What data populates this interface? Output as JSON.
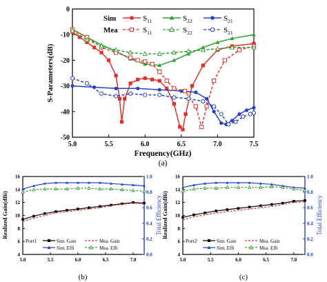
{
  "chart_data": [
    {
      "type": "line",
      "panel_label": "(a)",
      "xlabel": "Frequency(GHz)",
      "ylabel": "S-Parameters(dB)",
      "xlim": [
        5.0,
        7.5
      ],
      "ylim": [
        -50,
        0
      ],
      "xticks": [
        "5.0",
        "5.5",
        "6.0",
        "6.5",
        "7.0",
        "7.5"
      ],
      "yticks": [
        "0",
        "-10",
        "-20",
        "-30",
        "-40",
        "-50"
      ],
      "legend_position": "top",
      "legend": {
        "group_sim": "Sim",
        "group_mea": "Mea",
        "sim_entries": [
          "S11",
          "S22",
          "S21"
        ],
        "mea_entries": [
          "S11",
          "S22",
          "S21"
        ]
      },
      "series": [
        {
          "name": "Sim S11",
          "color": "#e0302a",
          "style": "solid",
          "marker": "square-filled",
          "x": [
            5.0,
            5.1,
            5.2,
            5.3,
            5.4,
            5.5,
            5.6,
            5.65,
            5.68,
            5.72,
            5.8,
            5.9,
            6.0,
            6.1,
            6.2,
            6.3,
            6.4,
            6.48,
            6.52,
            6.56,
            6.65,
            6.8,
            7.0,
            7.2,
            7.5
          ],
          "y": [
            -9,
            -11,
            -13,
            -15,
            -17,
            -20,
            -26,
            -35,
            -44,
            -35,
            -29,
            -27.5,
            -27,
            -27.5,
            -28,
            -31,
            -37,
            -46,
            -47,
            -41,
            -30,
            -22,
            -16,
            -14.5,
            -13.5
          ]
        },
        {
          "name": "Sim S22",
          "color": "#2ea02e",
          "style": "solid",
          "marker": "triangle-filled",
          "x": [
            5.0,
            5.2,
            5.4,
            5.6,
            5.8,
            6.0,
            6.2,
            6.4,
            6.6,
            6.8,
            7.0,
            7.2,
            7.5
          ],
          "y": [
            -8,
            -11,
            -14,
            -16.5,
            -19.5,
            -21.5,
            -22,
            -20,
            -17.5,
            -15,
            -13,
            -11.5,
            -10
          ]
        },
        {
          "name": "Sim S21",
          "color": "#2240c8",
          "style": "solid",
          "marker": "circle-filled",
          "x": [
            5.0,
            5.3,
            5.6,
            5.9,
            6.2,
            6.5,
            6.7,
            6.85,
            6.95,
            7.05,
            7.12,
            7.2,
            7.3,
            7.4,
            7.5
          ],
          "y": [
            -30,
            -30.5,
            -31,
            -31,
            -31.5,
            -32,
            -32.5,
            -35,
            -40,
            -44.5,
            -45,
            -43.5,
            -41,
            -39.5,
            -38.5
          ]
        },
        {
          "name": "Mea S11",
          "color": "#e0302a",
          "style": "dashed",
          "marker": "square-open",
          "x": [
            5.0,
            5.2,
            5.4,
            5.6,
            5.8,
            5.9,
            6.0,
            6.1,
            6.2,
            6.3,
            6.4,
            6.55,
            6.7,
            6.78,
            6.85,
            6.95,
            7.1,
            7.3,
            7.5
          ],
          "y": [
            -8,
            -11,
            -15,
            -17,
            -19,
            -20,
            -20.5,
            -21.5,
            -24.5,
            -28,
            -31,
            -32,
            -38,
            -46,
            -38,
            -28,
            -20,
            -16,
            -14.5
          ]
        },
        {
          "name": "Mea S22",
          "color": "#2ea02e",
          "style": "dashed",
          "marker": "triangle-open",
          "x": [
            5.0,
            5.2,
            5.4,
            5.6,
            5.8,
            6.0,
            6.2,
            6.4,
            6.6,
            6.8,
            7.0,
            7.2,
            7.5
          ],
          "y": [
            -8.5,
            -12,
            -14.5,
            -16,
            -17,
            -17.5,
            -17.5,
            -17,
            -16.5,
            -16,
            -15.5,
            -15,
            -15
          ]
        },
        {
          "name": "Mea S21",
          "color": "#2240c8",
          "style": "dashed",
          "marker": "circle-open",
          "x": [
            5.0,
            5.2,
            5.4,
            5.6,
            5.8,
            6.0,
            6.2,
            6.4,
            6.6,
            6.8,
            6.95,
            7.05,
            7.15,
            7.25,
            7.35,
            7.45,
            7.5
          ],
          "y": [
            -27,
            -29,
            -33,
            -34,
            -33,
            -33.5,
            -33.5,
            -34.5,
            -35,
            -36,
            -38,
            -41,
            -45,
            -44,
            -42,
            -41,
            -40.5
          ]
        }
      ]
    },
    {
      "type": "line",
      "panel_label": "(b)",
      "port_label": "Port1",
      "xlabel": "",
      "ylabel": "Realized Gain(dBi)",
      "ylabel_right": "Total Efficiency",
      "xlim": [
        5.0,
        7.2
      ],
      "ylim": [
        4,
        16
      ],
      "ylim_right": [
        0,
        1.0
      ],
      "xticks": [
        "5.0",
        "5.5",
        "6.0",
        "6.5",
        "7.0"
      ],
      "yticks": [
        "4",
        "6",
        "8",
        "10",
        "12",
        "14",
        "16"
      ],
      "yticks_right": [
        "0.0",
        "0.2",
        "0.4",
        "0.6",
        "0.8",
        "1.0"
      ],
      "legend_position": "bottom",
      "series": [
        {
          "name": "Sim. Gain",
          "color": "#000000",
          "style": "solid",
          "marker": "square-filled",
          "axis": "left",
          "x": [
            5.0,
            5.2,
            5.4,
            5.6,
            5.8,
            6.0,
            6.2,
            6.4,
            6.6,
            6.8,
            7.0,
            7.2
          ],
          "y": [
            9.4,
            9.9,
            10.3,
            10.6,
            10.8,
            11.0,
            11.2,
            11.4,
            11.6,
            11.8,
            12.0,
            11.9
          ]
        },
        {
          "name": "Mea. Gain",
          "color": "#e0302a",
          "style": "dashed",
          "marker": "none",
          "axis": "left",
          "x": [
            5.0,
            5.2,
            5.4,
            5.6,
            5.8,
            6.0,
            6.2,
            6.4,
            6.6,
            6.8,
            7.0,
            7.2
          ],
          "y": [
            9.1,
            9.6,
            10.0,
            10.4,
            10.6,
            10.8,
            11.0,
            11.2,
            11.5,
            11.7,
            11.9,
            11.8
          ]
        },
        {
          "name": "Sim. Effi",
          "color": "#2240c8",
          "style": "solid",
          "marker": "triangle-filled",
          "axis": "right",
          "x": [
            5.0,
            5.2,
            5.4,
            5.6,
            5.8,
            6.0,
            6.2,
            6.4,
            6.6,
            6.8,
            7.0,
            7.2
          ],
          "y": [
            0.84,
            0.88,
            0.91,
            0.92,
            0.92,
            0.92,
            0.92,
            0.92,
            0.91,
            0.9,
            0.89,
            0.88
          ]
        },
        {
          "name": "Mea. Effi",
          "color": "#2ea02e",
          "style": "dashed",
          "marker": "triangle-open",
          "axis": "right",
          "x": [
            5.0,
            5.2,
            5.4,
            5.6,
            5.8,
            6.0,
            6.2,
            6.4,
            6.6,
            6.8,
            7.0,
            7.2
          ],
          "y": [
            0.8,
            0.83,
            0.84,
            0.84,
            0.84,
            0.85,
            0.85,
            0.84,
            0.84,
            0.83,
            0.82,
            0.81
          ]
        }
      ]
    },
    {
      "type": "line",
      "panel_label": "(c)",
      "port_label": "Port2",
      "xlabel": "",
      "ylabel": "Realized Gain(dBi)",
      "ylabel_right": "Total Efficiency",
      "xlim": [
        5.0,
        7.2
      ],
      "ylim": [
        4,
        16
      ],
      "ylim_right": [
        0,
        1.0
      ],
      "xticks": [
        "5.0",
        "5.5",
        "6.0",
        "6.5",
        "7.0"
      ],
      "yticks": [
        "4",
        "6",
        "8",
        "10",
        "12",
        "14",
        "16"
      ],
      "yticks_right": [
        "0.0",
        "0.2",
        "0.4",
        "0.6",
        "0.8",
        "1.0"
      ],
      "legend_position": "bottom",
      "series": [
        {
          "name": "Sim. Gain",
          "color": "#000000",
          "style": "solid",
          "marker": "square-filled",
          "axis": "left",
          "x": [
            5.0,
            5.2,
            5.4,
            5.6,
            5.8,
            6.0,
            6.2,
            6.4,
            6.6,
            6.8,
            7.0,
            7.2
          ],
          "y": [
            9.7,
            10.1,
            10.4,
            10.7,
            10.9,
            11.1,
            11.3,
            11.5,
            11.7,
            11.9,
            12.2,
            12.3
          ]
        },
        {
          "name": "Mea. Gain",
          "color": "#e0302a",
          "style": "dashed",
          "marker": "none",
          "axis": "left",
          "x": [
            5.0,
            5.2,
            5.4,
            5.6,
            5.8,
            6.0,
            6.2,
            6.4,
            6.6,
            6.8,
            7.0,
            7.2
          ],
          "y": [
            9.3,
            9.8,
            10.1,
            10.4,
            10.6,
            10.8,
            11.0,
            11.2,
            11.4,
            11.7,
            12.0,
            12.1
          ]
        },
        {
          "name": "Sim. Effi",
          "color": "#2240c8",
          "style": "solid",
          "marker": "triangle-filled",
          "axis": "right",
          "x": [
            5.0,
            5.2,
            5.4,
            5.6,
            5.8,
            6.0,
            6.2,
            6.4,
            6.6,
            6.8,
            7.0,
            7.2
          ],
          "y": [
            0.86,
            0.89,
            0.91,
            0.92,
            0.92,
            0.92,
            0.92,
            0.91,
            0.9,
            0.88,
            0.86,
            0.85
          ]
        },
        {
          "name": "Mea. Effi",
          "color": "#2ea02e",
          "style": "dashed",
          "marker": "triangle-open",
          "axis": "right",
          "x": [
            5.0,
            5.2,
            5.4,
            5.6,
            5.8,
            6.0,
            6.2,
            6.4,
            6.6,
            6.8,
            7.0,
            7.2
          ],
          "y": [
            0.81,
            0.84,
            0.85,
            0.85,
            0.86,
            0.86,
            0.86,
            0.86,
            0.87,
            0.86,
            0.84,
            0.82
          ]
        }
      ]
    }
  ]
}
